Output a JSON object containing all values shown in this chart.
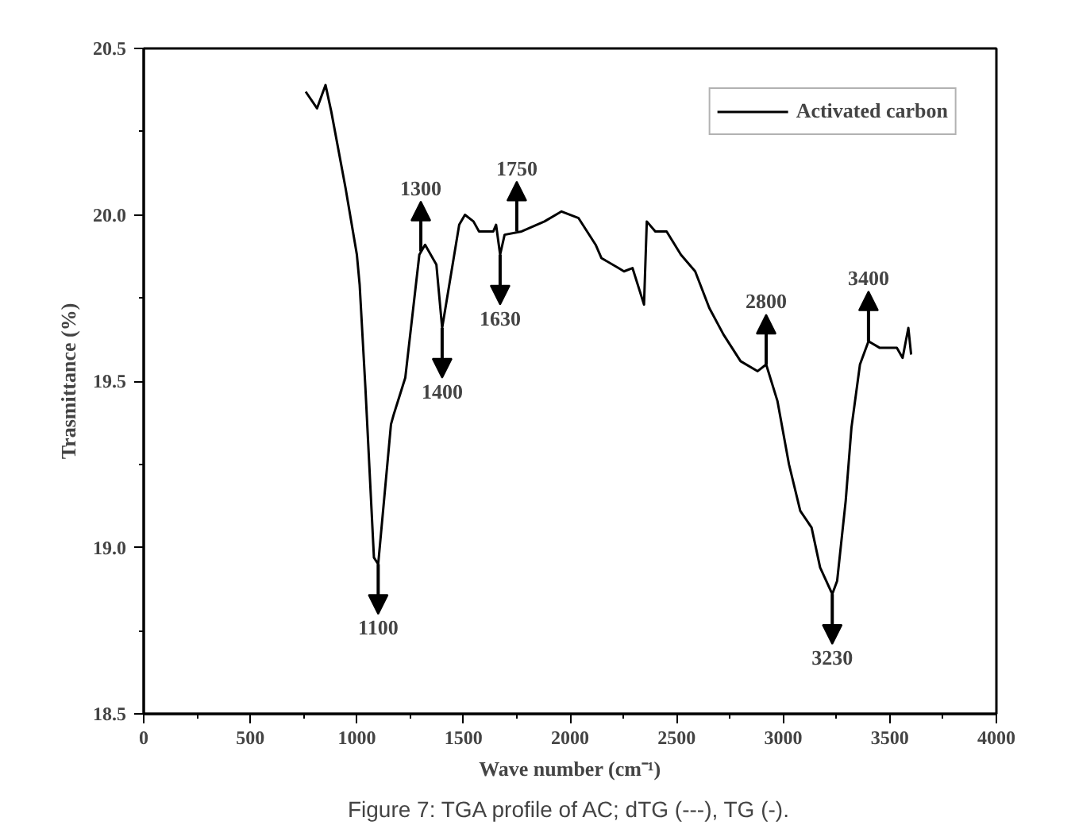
{
  "chart_data": {
    "type": "line",
    "xlabel": "Wave number (cm⁻¹)",
    "ylabel": "Trasmittance (%)",
    "xlim": [
      0,
      4000
    ],
    "xticks": [
      0,
      500,
      1000,
      1500,
      2000,
      2500,
      3000,
      3500,
      4000
    ],
    "ylim": [
      18.5,
      20.5
    ],
    "yticks": [
      {
        "value": 18.5,
        "label": "18.5"
      },
      {
        "value": 19.0,
        "label": "19.0"
      },
      {
        "value": 19.5,
        "label": "19.5"
      },
      {
        "value": 20.0,
        "label": "20.0"
      },
      {
        "value": 20.5,
        "label": "20.5"
      }
    ],
    "grid": false,
    "legend": "top right",
    "line_style": "solid",
    "marker": "none",
    "series": [
      {
        "name": "Activated carbon",
        "color": "#000000",
        "x": [
          760,
          813,
          853,
          880,
          947,
          1000,
          1013,
          1040,
          1080,
          1100,
          1160,
          1173,
          1227,
          1293,
          1320,
          1373,
          1400,
          1480,
          1507,
          1547,
          1573,
          1640,
          1653,
          1672,
          1693,
          1773,
          1880,
          1960,
          2040,
          2120,
          2147,
          2227,
          2253,
          2293,
          2347,
          2360,
          2400,
          2453,
          2520,
          2587,
          2653,
          2720,
          2800,
          2880,
          2920,
          2973,
          3027,
          3080,
          3133,
          3173,
          3230,
          3253,
          3293,
          3320,
          3360,
          3400,
          3453,
          3533,
          3560,
          3587,
          3600
        ],
        "values": [
          20.37,
          20.32,
          20.39,
          20.31,
          20.08,
          19.88,
          19.79,
          19.48,
          18.97,
          18.95,
          19.37,
          19.4,
          19.51,
          19.88,
          19.91,
          19.85,
          19.66,
          19.97,
          20.0,
          19.98,
          19.95,
          19.95,
          19.97,
          19.88,
          19.94,
          19.95,
          19.98,
          20.01,
          19.99,
          19.91,
          19.87,
          19.84,
          19.83,
          19.84,
          19.73,
          19.98,
          19.95,
          19.95,
          19.88,
          19.83,
          19.72,
          19.64,
          19.56,
          19.53,
          19.55,
          19.44,
          19.25,
          19.11,
          19.06,
          18.94,
          18.86,
          18.9,
          19.14,
          19.36,
          19.55,
          19.62,
          19.6,
          19.6,
          19.57,
          19.66,
          19.58
        ]
      }
    ],
    "annotations": [
      {
        "text": "1100",
        "x": 1100,
        "y": 18.95
      },
      {
        "text": "1300",
        "x": 1300,
        "y": 19.89
      },
      {
        "text": "1400",
        "x": 1400,
        "y": 19.66
      },
      {
        "text": "1630",
        "x": 1672,
        "y": 19.88
      },
      {
        "text": "1750",
        "x": 1750,
        "y": 19.95
      },
      {
        "text": "2800",
        "x": 2920,
        "y": 19.55
      },
      {
        "text": "3400",
        "x": 3400,
        "y": 19.62
      },
      {
        "text": "3230",
        "x": 3230,
        "y": 18.86
      },
      "Figure 7: TGA profile of AC; dTG (---), TG (-)."
    ]
  }
}
